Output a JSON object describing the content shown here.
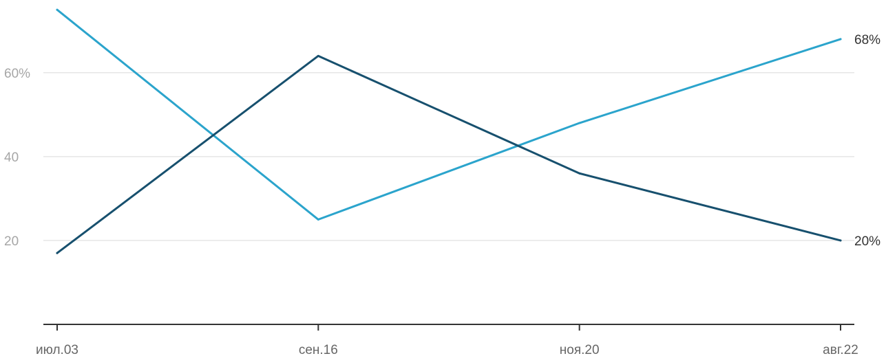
{
  "chart_data": {
    "type": "line",
    "categories": [
      "июл.03",
      "сен.16",
      "ноя.20",
      "авг.22"
    ],
    "series": [
      {
        "values": [
          75,
          25,
          48,
          68
        ],
        "color": "#2ba4cc",
        "end_label": "68%"
      },
      {
        "values": [
          17,
          64,
          36,
          20
        ],
        "color": "#17506e",
        "end_label": "20%"
      }
    ],
    "y_ticks": [
      {
        "value": 20,
        "label": "20"
      },
      {
        "value": 40,
        "label": "40"
      },
      {
        "value": 60,
        "label": "60%"
      }
    ],
    "ylim": [
      0,
      77
    ],
    "grid": true,
    "xlabel": "",
    "ylabel": ""
  }
}
